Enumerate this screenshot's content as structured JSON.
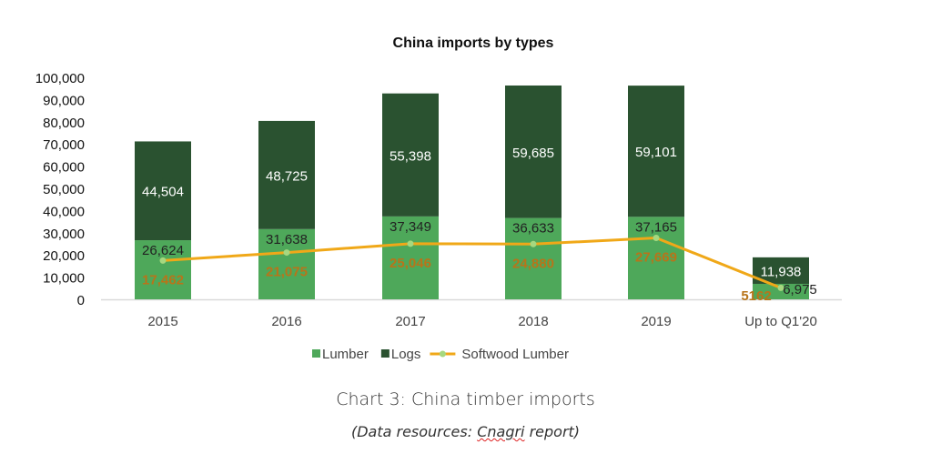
{
  "chart_data": {
    "type": "bar",
    "stacked": true,
    "title": "China imports by types",
    "categories": [
      "2015",
      "2016",
      "2017",
      "2018",
      "2019",
      "Up to Q1'20"
    ],
    "series": [
      {
        "name": "Lumber",
        "kind": "bar",
        "color": "#4ea85a",
        "values": [
          26624,
          31638,
          37349,
          36633,
          37165,
          6975
        ],
        "labels": [
          "26,624",
          "31,638",
          "37,349",
          "36,633",
          "37,165",
          "6,975"
        ]
      },
      {
        "name": "Logs",
        "kind": "bar",
        "color": "#2a5230",
        "values": [
          44504,
          48725,
          55398,
          59685,
          59101,
          11938
        ],
        "labels": [
          "44,504",
          "48,725",
          "55,398",
          "59,685",
          "59,101",
          "11,938"
        ]
      },
      {
        "name": "Softwood Lumber",
        "kind": "line",
        "color": "#f0a818",
        "marker_color": "#a6d87f",
        "label_color": "#b8741a",
        "values": [
          17462,
          21075,
          25046,
          24880,
          27669,
          5162
        ],
        "labels": [
          "17,462",
          "21,075",
          "25,046",
          "24,880",
          "27,669",
          "5162"
        ]
      }
    ],
    "yticks": [
      "0",
      "10,000",
      "20,000",
      "30,000",
      "40,000",
      "50,000",
      "60,000",
      "70,000",
      "80,000",
      "90,000",
      "100,000"
    ],
    "ylim": [
      0,
      100000
    ],
    "xlabel": "",
    "ylabel": "",
    "grid": false,
    "legend": "bottom"
  },
  "caption": {
    "title": "Chart 3: China timber imports",
    "source_prefix": "(Data resources: ",
    "source_word": "Cnagri",
    "source_suffix": " report)"
  }
}
